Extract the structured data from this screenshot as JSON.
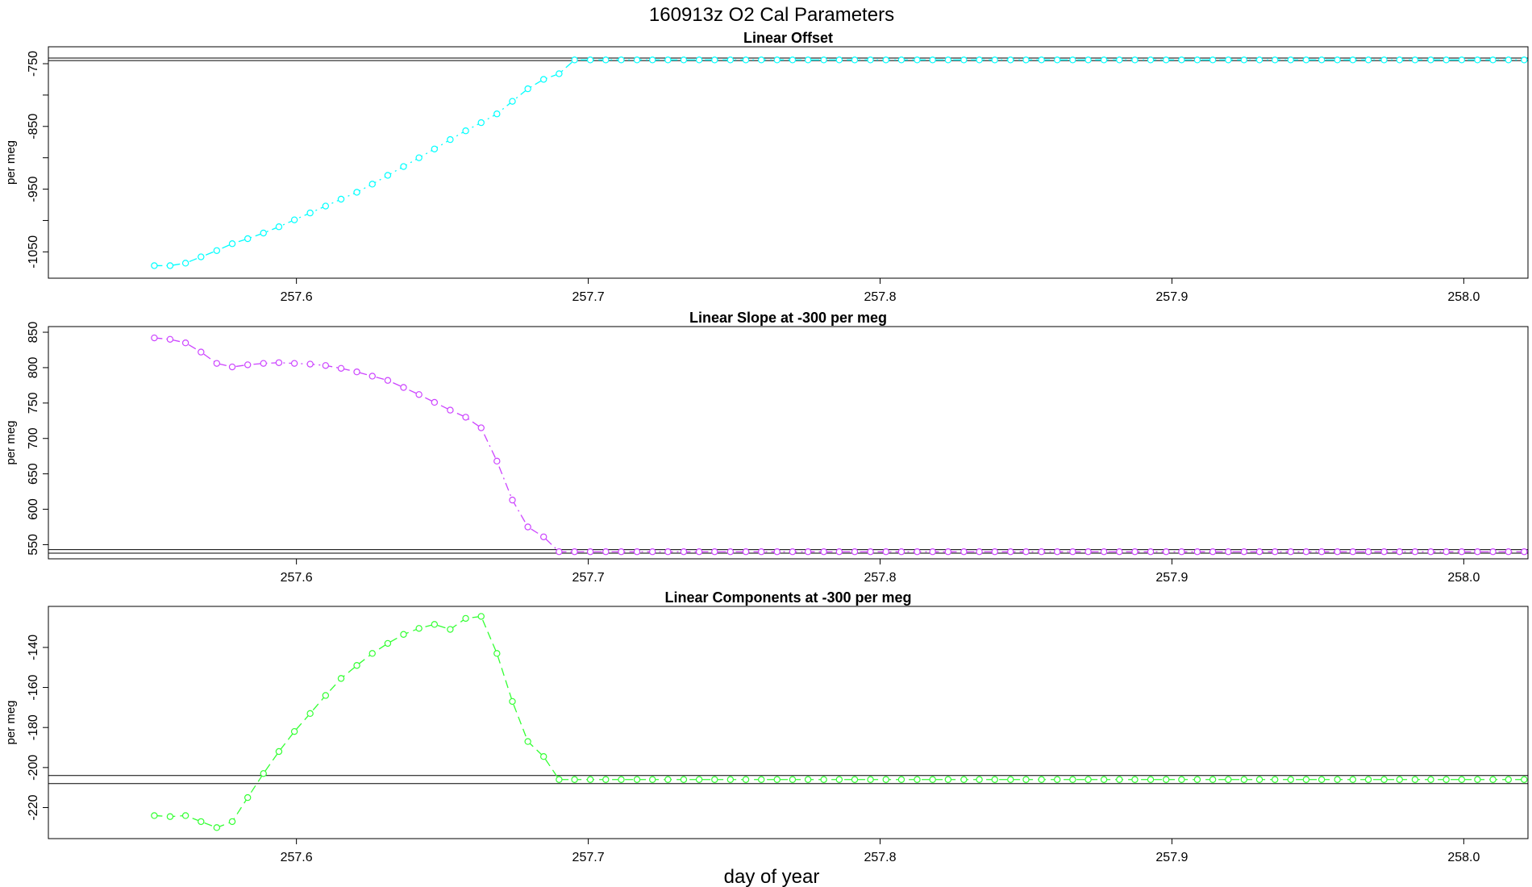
{
  "figure": {
    "title": "160913z   O2 Cal Parameters",
    "xlabel": "day of year"
  },
  "chart_data": [
    {
      "type": "line",
      "title": "Linear Offset",
      "ylabel": "per meg",
      "xlabel": "",
      "xlim": [
        257.515,
        258.022
      ],
      "ylim": [
        -1092,
        -723
      ],
      "xticks": [
        257.6,
        257.7,
        257.8,
        257.9,
        258.0
      ],
      "xtick_labels": [
        "257.6",
        "257.7",
        "257.8",
        "257.9",
        "258.0"
      ],
      "yticks": [
        -1050,
        -950,
        -850,
        -750
      ],
      "ytick_labels": [
        "-1050",
        "-950",
        "-850",
        "-750"
      ],
      "ytick_minor": [
        -1000,
        -900,
        -800
      ],
      "ytick_rotation": "vertical",
      "grid": false,
      "legend": "none",
      "reference_lines": [
        -741,
        -745
      ],
      "series": [
        {
          "color": "#00FFFF",
          "marker": "open-circle",
          "linestyle": "dash-dot",
          "x": [
            257.5513,
            257.5567,
            257.562,
            257.5673,
            257.5727,
            257.578,
            257.5833,
            257.5887,
            257.594,
            257.5993,
            257.6047,
            257.61,
            257.6153,
            257.6207,
            257.626,
            257.6313,
            257.6367,
            257.642,
            257.6473,
            257.6527,
            257.658,
            257.6633,
            257.6687,
            257.674,
            257.6793,
            257.6847,
            257.69,
            257.6953,
            257.7007,
            257.706,
            257.7113,
            257.7167,
            257.722,
            257.7273,
            257.7327,
            257.738,
            257.7433,
            257.7487,
            257.754,
            257.7593,
            257.7647,
            257.77,
            257.7753,
            257.7807,
            257.786,
            257.7913,
            257.7967,
            257.802,
            257.8073,
            257.8127,
            257.818,
            257.8233,
            257.8287,
            257.834,
            257.8393,
            257.8447,
            257.85,
            257.8553,
            257.8607,
            257.866,
            257.8713,
            257.8767,
            257.882,
            257.8873,
            257.8927,
            257.898,
            257.9033,
            257.9087,
            257.914,
            257.9193,
            257.9247,
            257.93,
            257.9353,
            257.9407,
            257.946,
            257.9513,
            257.9567,
            257.962,
            257.9673,
            257.9727,
            257.978,
            257.9833,
            257.9887,
            257.994,
            257.9993,
            258.0047,
            258.01,
            258.0153,
            258.0207
          ],
          "y": [
            -1072,
            -1072,
            -1068,
            -1058,
            -1048,
            -1037,
            -1029,
            -1020,
            -1010,
            -999,
            -988,
            -977,
            -966,
            -955,
            -942,
            -928,
            -914,
            -900,
            -886,
            -871,
            -857,
            -844,
            -830,
            -810,
            -790,
            -775,
            -766,
            -744,
            -744,
            -744,
            -744,
            -744,
            -744,
            -744,
            -744,
            -744,
            -744,
            -744,
            -744,
            -744,
            -744,
            -744,
            -744,
            -744,
            -744,
            -744,
            -744,
            -744,
            -744,
            -744,
            -744,
            -744,
            -744,
            -744,
            -744,
            -744,
            -744,
            -744,
            -744,
            -744,
            -744,
            -744,
            -744,
            -744,
            -744,
            -744,
            -744,
            -744,
            -744,
            -744,
            -744,
            -744,
            -744,
            -744,
            -744,
            -744,
            -744,
            -744,
            -744,
            -744,
            -744,
            -744,
            -744,
            -744,
            -744,
            -744,
            -744,
            -744,
            -744
          ]
        }
      ]
    },
    {
      "type": "line",
      "title": "Linear Slope at -300 per meg",
      "ylabel": "per meg",
      "xlabel": "",
      "xlim": [
        257.515,
        258.022
      ],
      "ylim": [
        530,
        858
      ],
      "xticks": [
        257.6,
        257.7,
        257.8,
        257.9,
        258.0
      ],
      "xtick_labels": [
        "257.6",
        "257.7",
        "257.8",
        "257.9",
        "258.0"
      ],
      "yticks": [
        550,
        600,
        650,
        700,
        750,
        800,
        850
      ],
      "ytick_labels": [
        "550",
        "600",
        "650",
        "700",
        "750",
        "800",
        "850"
      ],
      "ytick_minor": [],
      "ytick_rotation": "vertical",
      "grid": false,
      "legend": "none",
      "reference_lines": [
        543,
        538
      ],
      "series": [
        {
          "color": "#CC44FF",
          "marker": "open-circle",
          "linestyle": "dash-dot",
          "x": [
            257.5513,
            257.5567,
            257.562,
            257.5673,
            257.5727,
            257.578,
            257.5833,
            257.5887,
            257.594,
            257.5993,
            257.6047,
            257.61,
            257.6153,
            257.6207,
            257.626,
            257.6313,
            257.6367,
            257.642,
            257.6473,
            257.6527,
            257.658,
            257.6633,
            257.6687,
            257.674,
            257.6793,
            257.6847,
            257.69,
            257.6953,
            257.7007,
            257.706,
            257.7113,
            257.7167,
            257.722,
            257.7273,
            257.7327,
            257.738,
            257.7433,
            257.7487,
            257.754,
            257.7593,
            257.7647,
            257.77,
            257.7753,
            257.7807,
            257.786,
            257.7913,
            257.7967,
            257.802,
            257.8073,
            257.8127,
            257.818,
            257.8233,
            257.8287,
            257.834,
            257.8393,
            257.8447,
            257.85,
            257.8553,
            257.8607,
            257.866,
            257.8713,
            257.8767,
            257.882,
            257.8873,
            257.8927,
            257.898,
            257.9033,
            257.9087,
            257.914,
            257.9193,
            257.9247,
            257.93,
            257.9353,
            257.9407,
            257.946,
            257.9513,
            257.9567,
            257.962,
            257.9673,
            257.9727,
            257.978,
            257.9833,
            257.9887,
            257.994,
            257.9993,
            258.0047,
            258.01,
            258.0153,
            258.0207
          ],
          "y": [
            842,
            840,
            835,
            822,
            806,
            801,
            804,
            806,
            807,
            806,
            805,
            803,
            799,
            794,
            788,
            782,
            772,
            762,
            751,
            740,
            730,
            715,
            668,
            613,
            575,
            561,
            540,
            540,
            540,
            540,
            540,
            540,
            540,
            540,
            540,
            540,
            540,
            540,
            540,
            540,
            540,
            540,
            540,
            540,
            540,
            540,
            540,
            540,
            540,
            540,
            540,
            540,
            540,
            540,
            540,
            540,
            540,
            540,
            540,
            540,
            540,
            540,
            540,
            540,
            540,
            540,
            540,
            540,
            540,
            540,
            540,
            540,
            540,
            540,
            540,
            540,
            540,
            540,
            540,
            540,
            540,
            540,
            540,
            540,
            540,
            540,
            540,
            540,
            540
          ]
        }
      ]
    },
    {
      "type": "line",
      "title": "Linear Components at -300 per meg",
      "ylabel": "per meg",
      "xlabel": "",
      "xlim": [
        257.515,
        258.022
      ],
      "ylim": [
        -235.5,
        -119.5
      ],
      "xticks": [
        257.6,
        257.7,
        257.8,
        257.9,
        258.0
      ],
      "xtick_labels": [
        "257.6",
        "257.7",
        "257.8",
        "257.9",
        "258.0"
      ],
      "yticks": [
        -220,
        -200,
        -180,
        -160,
        -140
      ],
      "ytick_labels": [
        "-220",
        "-200",
        "-180",
        "-160",
        "-140"
      ],
      "ytick_minor": [],
      "ytick_rotation": "vertical",
      "grid": false,
      "legend": "none",
      "reference_lines": [
        -204,
        -208
      ],
      "series": [
        {
          "color": "#33FF33",
          "marker": "open-circle",
          "linestyle": "dash",
          "x": [
            257.5513,
            257.5567,
            257.562,
            257.5673,
            257.5727,
            257.578,
            257.5833,
            257.5887,
            257.594,
            257.5993,
            257.6047,
            257.61,
            257.6153,
            257.6207,
            257.626,
            257.6313,
            257.6367,
            257.642,
            257.6473,
            257.6527,
            257.658,
            257.6633,
            257.6687,
            257.674,
            257.6793,
            257.6847,
            257.69,
            257.6953,
            257.7007,
            257.706,
            257.7113,
            257.7167,
            257.722,
            257.7273,
            257.7327,
            257.738,
            257.7433,
            257.7487,
            257.754,
            257.7593,
            257.7647,
            257.77,
            257.7753,
            257.7807,
            257.786,
            257.7913,
            257.7967,
            257.802,
            257.8073,
            257.8127,
            257.818,
            257.8233,
            257.8287,
            257.834,
            257.8393,
            257.8447,
            257.85,
            257.8553,
            257.8607,
            257.866,
            257.8713,
            257.8767,
            257.882,
            257.8873,
            257.8927,
            257.898,
            257.9033,
            257.9087,
            257.914,
            257.9193,
            257.9247,
            257.93,
            257.9353,
            257.9407,
            257.946,
            257.9513,
            257.9567,
            257.962,
            257.9673,
            257.9727,
            257.978,
            257.9833,
            257.9887,
            257.994,
            257.9993,
            258.0047,
            258.01,
            258.0153,
            258.0207
          ],
          "y": [
            -224,
            -224.5,
            -224,
            -227,
            -230,
            -227,
            -215,
            -203,
            -192,
            -182,
            -173,
            -164,
            -155.5,
            -149,
            -143,
            -138,
            -133.5,
            -130.5,
            -128.5,
            -131,
            -125.5,
            -124.5,
            -143,
            -167,
            -187,
            -194.5,
            -206,
            -206,
            -206,
            -206,
            -206,
            -206,
            -206,
            -206,
            -206,
            -206,
            -206,
            -206,
            -206,
            -206,
            -206,
            -206,
            -206,
            -206,
            -206,
            -206,
            -206,
            -206,
            -206,
            -206,
            -206,
            -206,
            -206,
            -206,
            -206,
            -206,
            -206,
            -206,
            -206,
            -206,
            -206,
            -206,
            -206,
            -206,
            -206,
            -206,
            -206,
            -206,
            -206,
            -206,
            -206,
            -206,
            -206,
            -206,
            -206,
            -206,
            -206,
            -206,
            -206,
            -206,
            -206,
            -206,
            -206,
            -206,
            -206,
            -206,
            -206,
            -206,
            -206
          ]
        }
      ]
    }
  ]
}
